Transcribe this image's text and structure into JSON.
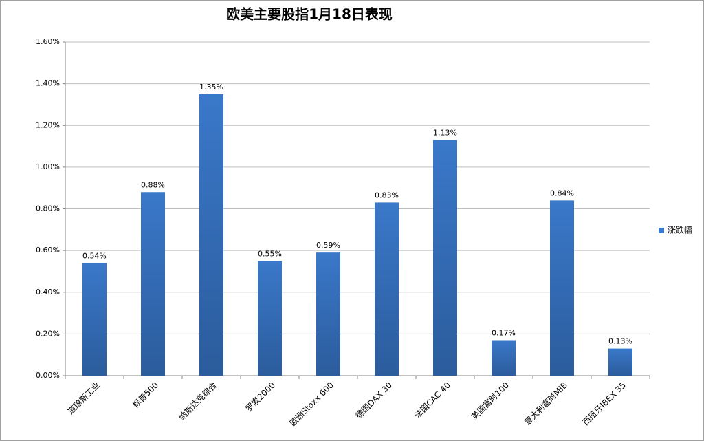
{
  "chart_data": {
    "type": "bar",
    "title": "欧美主要股指1月18日表现",
    "categories": [
      "道琼斯工业",
      "标普500",
      "纳斯达克综合",
      "罗素2000",
      "欧洲Stoxx 600",
      "德国DAX 30",
      "法国CAC 40",
      "英国富时100",
      "意大利富时MIB",
      "西班牙IBEX 35"
    ],
    "series": [
      {
        "name": "涨跌幅",
        "color": "#3a78c9",
        "values": [
          0.54,
          0.88,
          1.35,
          0.55,
          0.59,
          0.83,
          1.13,
          0.17,
          0.84,
          0.13
        ],
        "value_labels": [
          "0.54%",
          "0.88%",
          "1.35%",
          "0.55%",
          "0.59%",
          "0.83%",
          "1.13%",
          "0.17%",
          "0.84%",
          "0.13%"
        ]
      }
    ],
    "ylim": [
      0,
      1.6
    ],
    "yticks": [
      {
        "value": 0,
        "label": "0.00%"
      },
      {
        "value": 0.2,
        "label": "0.20%"
      },
      {
        "value": 0.4,
        "label": "0.40%"
      },
      {
        "value": 0.6,
        "label": "0.60%"
      },
      {
        "value": 0.8,
        "label": "0.80%"
      },
      {
        "value": 1.0,
        "label": "1.00%"
      },
      {
        "value": 1.2,
        "label": "1.20%"
      },
      {
        "value": 1.4,
        "label": "1.40%"
      },
      {
        "value": 1.6,
        "label": "1.60%"
      }
    ],
    "grid": true,
    "legend": "right"
  }
}
